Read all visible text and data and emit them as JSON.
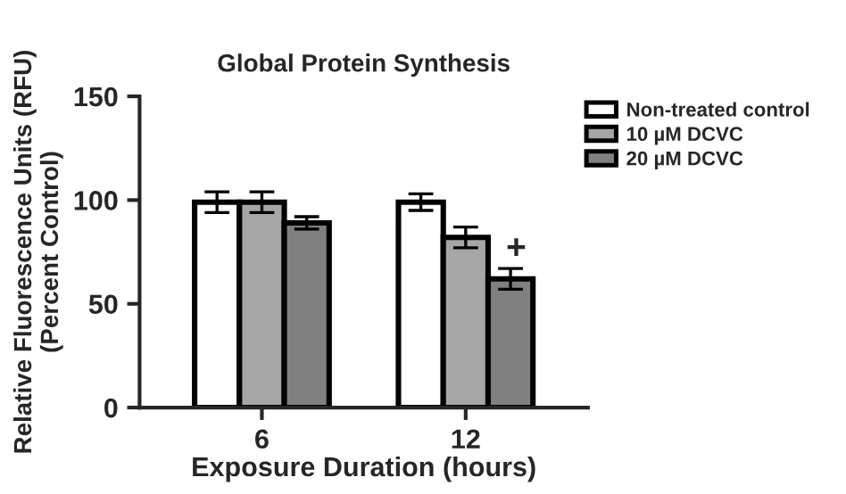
{
  "chart_data": {
    "type": "bar",
    "title": "Global Protein Synthesis",
    "xlabel": "Exposure Duration (hours)",
    "ylabel": "Relative Fluorescence Units (RFU)\n(Percent Control)",
    "categories": [
      "6",
      "12"
    ],
    "series": [
      {
        "name": "Non-treated control",
        "color": "#ffffff",
        "values": [
          99,
          99
        ],
        "errors": [
          5,
          4
        ]
      },
      {
        "name": "10 µM DCVC",
        "color": "#a6a6a6",
        "values": [
          99,
          82
        ],
        "errors": [
          5,
          5
        ]
      },
      {
        "name": "20 µM DCVC",
        "color": "#808080",
        "values": [
          89,
          62
        ],
        "errors": [
          3,
          5
        ]
      }
    ],
    "ylim": [
      0,
      150
    ],
    "yticks": [
      0,
      50,
      100,
      150
    ],
    "grid": false,
    "legend": "top right",
    "annotations": [
      "+"
    ]
  }
}
